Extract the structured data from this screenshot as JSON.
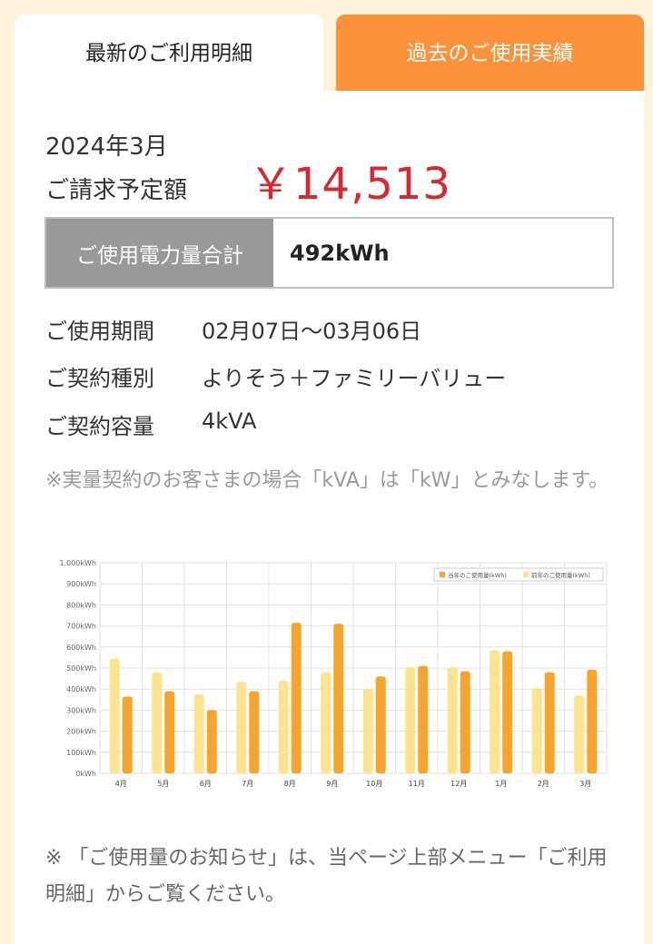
{
  "tabs": {
    "latest": "最新のご利用明細",
    "history": "過去のご使用実績"
  },
  "bill": {
    "month": "2024年3月",
    "label": "ご請求予定額",
    "amount": "￥14,513"
  },
  "usage": {
    "label": "ご使用電力量合計",
    "value": "492kWh"
  },
  "details": {
    "period_label": "ご使用期間",
    "period_value": "02月07日～03月06日",
    "plan_label": "ご契約種別",
    "plan_value": "よりそう＋ファミリーバリュー",
    "capacity_label": "ご契約容量",
    "capacity_value": "4kVA"
  },
  "note_kva": "※実量契約のお客さまの場合「kVA」は「kW」とみなします。",
  "note_bottom": "※ 「ご使用量のお知らせ」は、当ページ上部メニュー「ご利用明細」からご覧ください。",
  "chart_data": {
    "type": "bar",
    "categories": [
      "4月",
      "5月",
      "6月",
      "7月",
      "8月",
      "9月",
      "10月",
      "11月",
      "12月",
      "1月",
      "2月",
      "3月"
    ],
    "series": [
      {
        "name": "前年のご使用量(kWh)",
        "color": "#fde38d",
        "values": [
          545,
          480,
          375,
          435,
          440,
          480,
          400,
          505,
          505,
          585,
          405,
          370
        ]
      },
      {
        "name": "当年のご使用量(kWh)",
        "color": "#f7a42c",
        "values": [
          365,
          390,
          300,
          390,
          715,
          710,
          460,
          510,
          485,
          580,
          480,
          492
        ]
      }
    ],
    "ylim": [
      0,
      1000
    ],
    "yticks": [
      "0kWh",
      "100kWh",
      "200kWh",
      "300kWh",
      "400kWh",
      "500kWh",
      "600kWh",
      "700kWh",
      "800kWh",
      "900kWh",
      "1,000kWh"
    ],
    "legend": "top-right",
    "grid": true
  }
}
